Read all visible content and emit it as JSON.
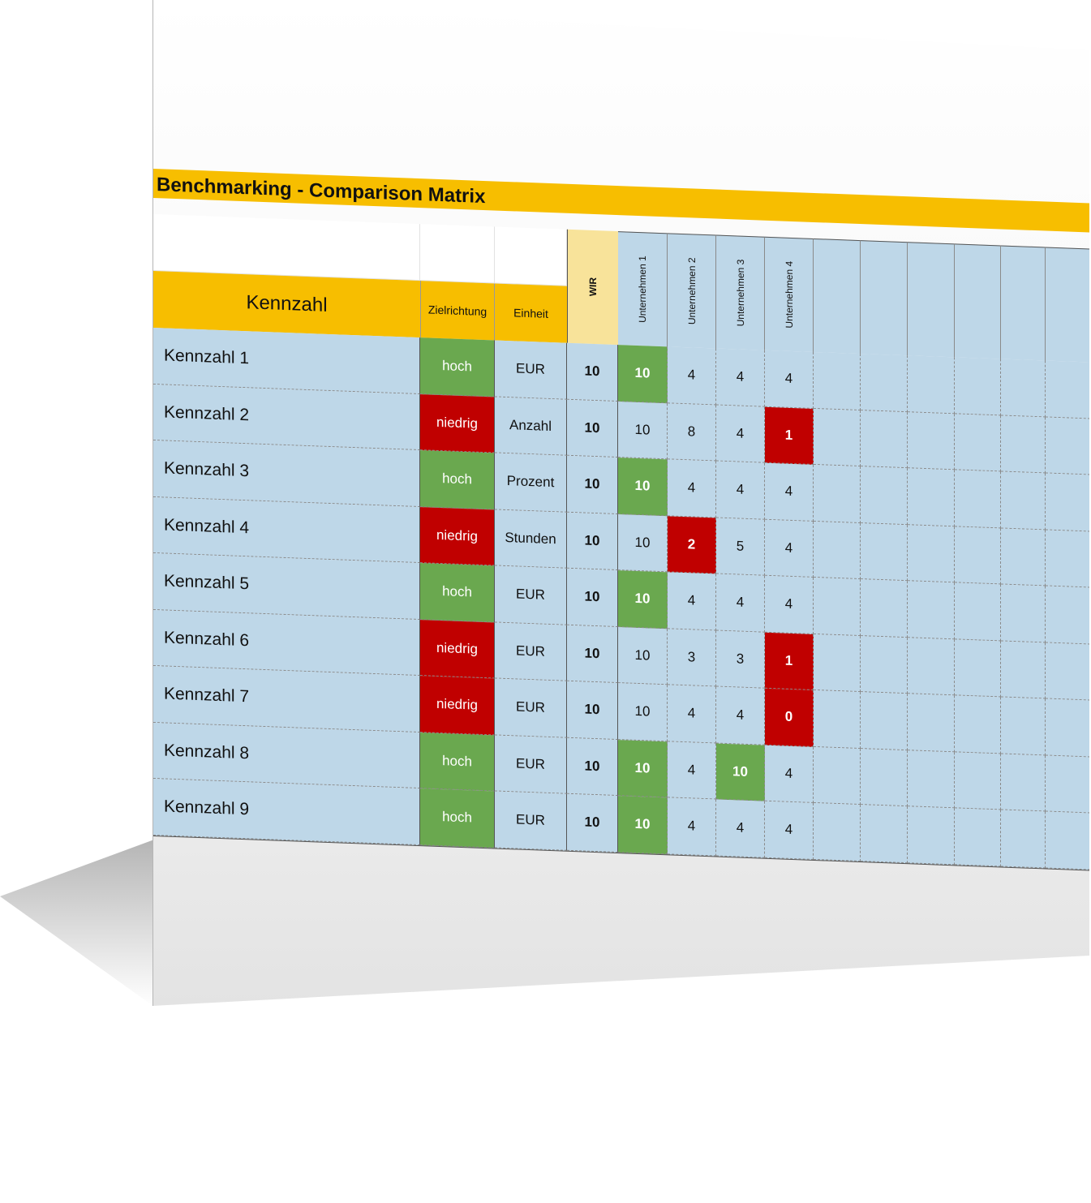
{
  "title": "Benchmarking - Comparison Matrix",
  "headers": {
    "kennzahl": "Kennzahl",
    "zielrichtung": "Zielrichtung",
    "einheit": "Einheit",
    "wir": "WIR",
    "companies": [
      "Unternehmen 1",
      "Unternehmen 2",
      "Unternehmen 3",
      "Unternehmen 4"
    ]
  },
  "colors": {
    "accent": "#f7be00",
    "wir_header": "#f8e39a",
    "row_background": "#bed7e8",
    "good": "#6aa84f",
    "bad": "#c00000"
  },
  "rows": [
    {
      "name": "Kennzahl 1",
      "direction": "hoch",
      "unit": "EUR",
      "wir": "10",
      "values": [
        "10",
        "4",
        "4",
        "4"
      ],
      "status": [
        "green",
        "",
        "",
        ""
      ]
    },
    {
      "name": "Kennzahl 2",
      "direction": "niedrig",
      "unit": "Anzahl",
      "wir": "10",
      "values": [
        "10",
        "8",
        "4",
        "1"
      ],
      "status": [
        "",
        "",
        "",
        "red"
      ]
    },
    {
      "name": "Kennzahl 3",
      "direction": "hoch",
      "unit": "Prozent",
      "wir": "10",
      "values": [
        "10",
        "4",
        "4",
        "4"
      ],
      "status": [
        "green",
        "",
        "",
        ""
      ]
    },
    {
      "name": "Kennzahl 4",
      "direction": "niedrig",
      "unit": "Stunden",
      "wir": "10",
      "values": [
        "10",
        "2",
        "5",
        "4"
      ],
      "status": [
        "",
        "red",
        "",
        ""
      ]
    },
    {
      "name": "Kennzahl 5",
      "direction": "hoch",
      "unit": "EUR",
      "wir": "10",
      "values": [
        "10",
        "4",
        "4",
        "4"
      ],
      "status": [
        "green",
        "",
        "",
        ""
      ]
    },
    {
      "name": "Kennzahl 6",
      "direction": "niedrig",
      "unit": "EUR",
      "wir": "10",
      "values": [
        "10",
        "3",
        "3",
        "1"
      ],
      "status": [
        "",
        "",
        "",
        "red"
      ]
    },
    {
      "name": "Kennzahl 7",
      "direction": "niedrig",
      "unit": "EUR",
      "wir": "10",
      "values": [
        "10",
        "4",
        "4",
        "0"
      ],
      "status": [
        "",
        "",
        "",
        "red"
      ]
    },
    {
      "name": "Kennzahl 8",
      "direction": "hoch",
      "unit": "EUR",
      "wir": "10",
      "values": [
        "10",
        "4",
        "10",
        "4"
      ],
      "status": [
        "green",
        "",
        "green",
        ""
      ]
    },
    {
      "name": "Kennzahl 9",
      "direction": "hoch",
      "unit": "EUR",
      "wir": "10",
      "values": [
        "10",
        "4",
        "4",
        "4"
      ],
      "status": [
        "green",
        "",
        "",
        ""
      ]
    }
  ]
}
